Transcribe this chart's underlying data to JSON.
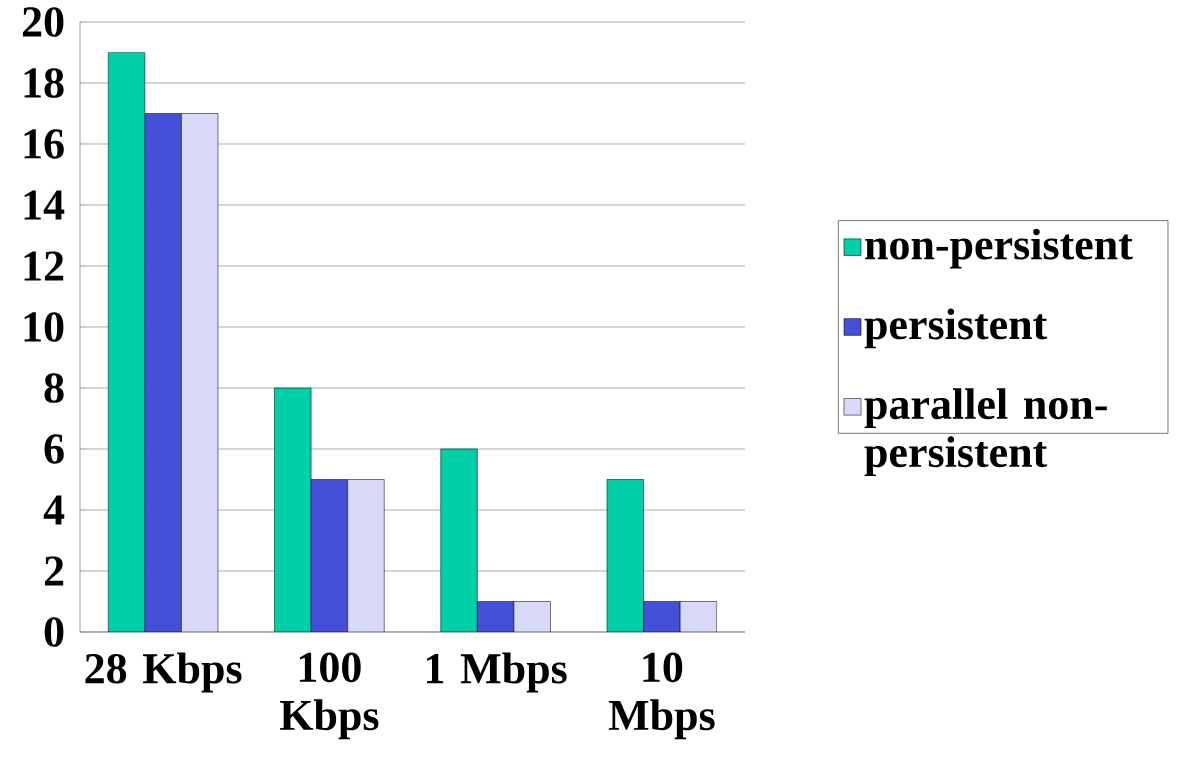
{
  "chart_data": {
    "type": "bar",
    "categories": [
      "28 Kbps",
      "100 Kbps",
      "1 Mbps",
      "10 Mbps"
    ],
    "series": [
      {
        "name": "non-persistent",
        "color": "#00d0a8",
        "values": [
          19,
          8,
          6,
          5
        ]
      },
      {
        "name": "persistent",
        "color": "#4450d8",
        "values": [
          17,
          5,
          1,
          1
        ]
      },
      {
        "name": "parallel non-persistent",
        "color": "#d8d8f8",
        "values": [
          17,
          5,
          1,
          1
        ]
      }
    ],
    "ylim": [
      0,
      20
    ],
    "yticks": [
      0,
      2,
      4,
      6,
      8,
      10,
      12,
      14,
      16,
      18,
      20
    ],
    "grid": "y",
    "legend": "right"
  }
}
